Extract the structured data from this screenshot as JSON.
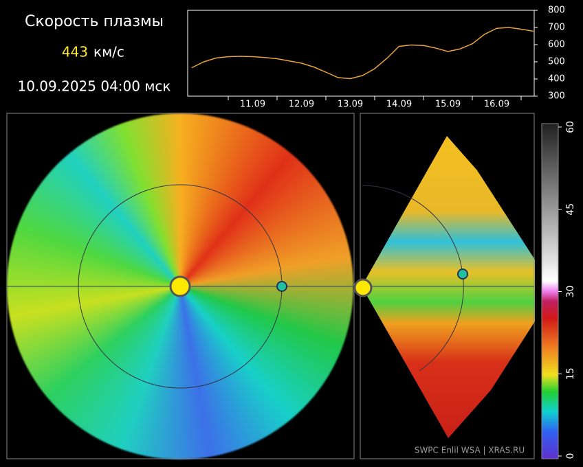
{
  "header": {
    "title": "Скорость плазмы",
    "value": "443",
    "unit": "км/с",
    "datetime": "10.09.2025 04:00 мск"
  },
  "credit": "SWPC Enlil WSA  |  XRAS.RU",
  "chart_data": [
    {
      "type": "line",
      "categories": [
        null,
        null,
        null,
        null,
        null,
        "11.09",
        null,
        null,
        null,
        "12.09",
        null,
        null,
        null,
        "13.09",
        null,
        null,
        null,
        "14.09",
        null,
        null,
        null,
        "15.09",
        null,
        null,
        null,
        "16.09",
        null,
        null,
        null
      ],
      "series": [
        {
          "color": "#e8a33a",
          "values": [
            465,
            500,
            522,
            530,
            532,
            530,
            525,
            518,
            505,
            492,
            470,
            440,
            408,
            402,
            420,
            460,
            520,
            590,
            598,
            595,
            580,
            560,
            575,
            605,
            660,
            695,
            700,
            690,
            678
          ]
        }
      ],
      "ylim": [
        300,
        800
      ],
      "yticks": [
        300,
        400,
        500,
        600,
        700,
        800
      ]
    },
    {
      "type": "colorbar",
      "ylim": [
        0,
        60
      ],
      "yticks": [
        0,
        15,
        30,
        45,
        60
      ]
    }
  ]
}
